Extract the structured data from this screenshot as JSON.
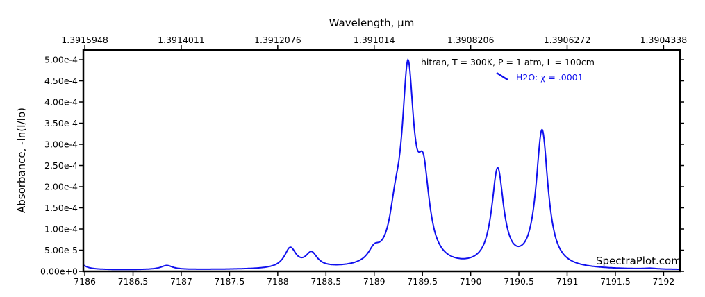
{
  "chart_data": {
    "type": "line",
    "title": "",
    "xlabel": "",
    "ylabel": "Absorbance, -ln(I/Io)",
    "x2label": "Wavelength, µm",
    "xlim": [
      7185.985,
      7192.17
    ],
    "ylim": [
      0,
      0.000523
    ],
    "grid": false,
    "x_ticks": [
      7186,
      7186.5,
      7187,
      7187.5,
      7188,
      7188.5,
      7189,
      7189.5,
      7190,
      7190.5,
      7191,
      7191.5,
      7192
    ],
    "x_tick_labels": [
      "7186",
      "7186.5",
      "7187",
      "7187.5",
      "7188",
      "7188.5",
      "7189",
      "7189.5",
      "7190",
      "7190.5",
      "7191",
      "7191.5",
      "7192"
    ],
    "x2_ticks": [
      7186,
      7187,
      7188,
      7189,
      7190,
      7191,
      7192
    ],
    "x2_tick_labels": [
      "1.3915948",
      "1.3914011",
      "1.3912076",
      "1.391014",
      "1.3908206",
      "1.3906272",
      "1.3904338"
    ],
    "y_ticks": [
      0,
      5e-05,
      0.0001,
      0.00015,
      0.0002,
      0.00025,
      0.0003,
      0.00035,
      0.0004,
      0.00045,
      0.0005
    ],
    "y_tick_labels": [
      "0.00e+0",
      "5.00e-5",
      "1.00e-4",
      "1.50e-4",
      "2.00e-4",
      "2.50e-4",
      "3.00e-4",
      "3.50e-4",
      "4.00e-4",
      "4.50e-4",
      "5.00e-4"
    ],
    "legend": {
      "header": "hitran, T = 300K, P = 1 atm, L = 100cm",
      "placement": "top-right",
      "entries": [
        {
          "name": "H2O: χ = .0001",
          "color": "#1010ee"
        }
      ]
    },
    "watermark": "SpectraPlot.com",
    "series": [
      {
        "name": "H2O: χ = .0001",
        "color": "#1010ee",
        "baseline": 3e-06,
        "peaks": [
          {
            "x": 7185.93,
            "y": 2.1e-05
          },
          {
            "x": 7186.85,
            "y": 1.4e-05
          },
          {
            "x": 7188.13,
            "y": 5.7e-05
          },
          {
            "x": 7188.35,
            "y": 4.7e-05
          },
          {
            "x": 7189.0,
            "y": 6.5e-05
          },
          {
            "x": 7189.22,
            "y": 0.000215
          },
          {
            "x": 7189.35,
            "y": 0.0005
          },
          {
            "x": 7189.51,
            "y": 0.000277
          },
          {
            "x": 7190.28,
            "y": 0.000245
          },
          {
            "x": 7190.74,
            "y": 0.000335
          },
          {
            "x": 7191.86,
            "y": 7.5e-06
          }
        ]
      }
    ]
  }
}
